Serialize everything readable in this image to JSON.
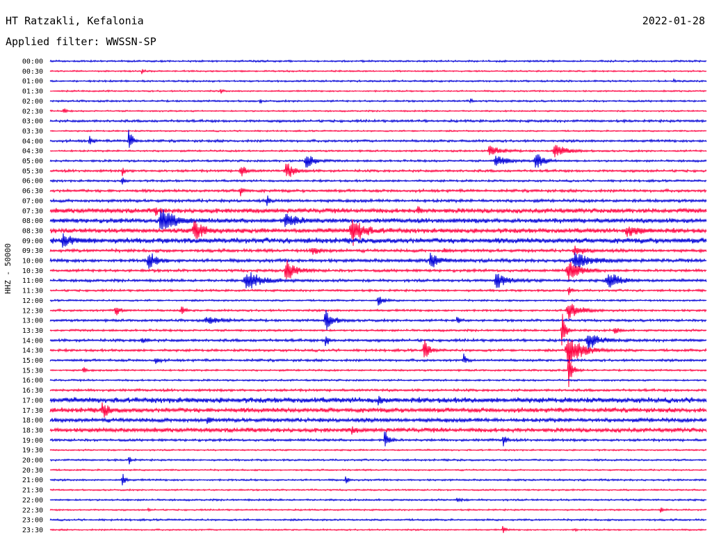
{
  "header": {
    "station": "HT Ratzakli, Kefalonia",
    "date": "2022-01-28",
    "filter_label": "Applied filter: WWSSN-SP",
    "axis_label": "HHZ - 50000"
  },
  "colors": {
    "trace_a": "#0000d8",
    "trace_b": "#ff0040"
  },
  "chart_data": {
    "type": "line",
    "title": "HT Ratzakli, Kefalonia",
    "subtitle": "Applied filter: WWSSN-SP",
    "ylabel": "HHZ - 50000",
    "xlabel": "",
    "series": [
      {
        "name": "blue",
        "color": "#0000d8"
      },
      {
        "name": "red",
        "color": "#ff0040"
      }
    ],
    "rows": [
      {
        "label": "00:00",
        "noise": 1.2,
        "events": []
      },
      {
        "label": "00:30",
        "noise": 1.0,
        "events": [
          [
            0.14,
            4,
            6
          ]
        ]
      },
      {
        "label": "01:00",
        "noise": 1.2,
        "events": [
          [
            0.95,
            3,
            4
          ]
        ]
      },
      {
        "label": "01:30",
        "noise": 1.0,
        "events": [
          [
            0.26,
            4,
            6
          ]
        ]
      },
      {
        "label": "02:00",
        "noise": 1.2,
        "events": [
          [
            0.32,
            3,
            4
          ],
          [
            0.64,
            3,
            6
          ]
        ]
      },
      {
        "label": "02:30",
        "noise": 1.0,
        "events": [
          [
            0.02,
            6,
            6
          ]
        ]
      },
      {
        "label": "03:00",
        "noise": 1.6,
        "events": []
      },
      {
        "label": "03:30",
        "noise": 1.0,
        "events": []
      },
      {
        "label": "04:00",
        "noise": 1.6,
        "events": [
          [
            0.06,
            8,
            8
          ],
          [
            0.12,
            20,
            10
          ]
        ]
      },
      {
        "label": "04:30",
        "noise": 1.2,
        "events": [
          [
            0.67,
            9,
            30
          ],
          [
            0.77,
            10,
            30
          ]
        ]
      },
      {
        "label": "05:00",
        "noise": 1.4,
        "events": [
          [
            0.39,
            14,
            20
          ],
          [
            0.68,
            10,
            26
          ],
          [
            0.74,
            14,
            20
          ]
        ]
      },
      {
        "label": "05:30",
        "noise": 1.6,
        "events": [
          [
            0.29,
            10,
            14
          ],
          [
            0.11,
            6,
            6
          ],
          [
            0.36,
            14,
            20
          ]
        ]
      },
      {
        "label": "06:00",
        "noise": 1.4,
        "events": [
          [
            0.11,
            5,
            8
          ]
        ]
      },
      {
        "label": "06:30",
        "noise": 1.8,
        "events": [
          [
            0.29,
            12,
            8
          ]
        ]
      },
      {
        "label": "07:00",
        "noise": 2.0,
        "events": [
          [
            0.33,
            9,
            6
          ]
        ]
      },
      {
        "label": "07:30",
        "noise": 3.0,
        "events": [
          [
            0.16,
            6,
            10
          ],
          [
            0.56,
            6,
            8
          ]
        ]
      },
      {
        "label": "08:00",
        "noise": 3.0,
        "events": [
          [
            0.17,
            22,
            30
          ],
          [
            0.36,
            12,
            30
          ]
        ]
      },
      {
        "label": "08:30",
        "noise": 3.0,
        "events": [
          [
            0.22,
            16,
            26
          ],
          [
            0.46,
            22,
            30
          ],
          [
            0.88,
            8,
            30
          ]
        ]
      },
      {
        "label": "09:00",
        "noise": 3.5,
        "events": [
          [
            0.02,
            8,
            30
          ]
        ]
      },
      {
        "label": "09:30",
        "noise": 2.0,
        "events": [
          [
            0.4,
            6,
            20
          ],
          [
            0.8,
            6,
            30
          ],
          [
            0.6,
            6,
            8
          ]
        ]
      },
      {
        "label": "10:00",
        "noise": 2.2,
        "events": [
          [
            0.15,
            14,
            20
          ],
          [
            0.58,
            14,
            20
          ],
          [
            0.8,
            12,
            40
          ]
        ]
      },
      {
        "label": "10:30",
        "noise": 1.8,
        "events": [
          [
            0.36,
            16,
            26
          ],
          [
            0.79,
            16,
            30
          ]
        ]
      },
      {
        "label": "11:00",
        "noise": 1.8,
        "events": [
          [
            0.3,
            14,
            40
          ],
          [
            0.68,
            12,
            30
          ],
          [
            0.85,
            14,
            30
          ]
        ]
      },
      {
        "label": "11:30",
        "noise": 1.4,
        "events": [
          [
            0.79,
            10,
            6
          ]
        ]
      },
      {
        "label": "12:00",
        "noise": 1.2,
        "events": [
          [
            0.5,
            8,
            14
          ]
        ]
      },
      {
        "label": "12:30",
        "noise": 1.4,
        "events": [
          [
            0.1,
            8,
            14
          ],
          [
            0.2,
            10,
            8
          ],
          [
            0.79,
            14,
            30
          ]
        ]
      },
      {
        "label": "13:00",
        "noise": 1.6,
        "events": [
          [
            0.24,
            5,
            40
          ],
          [
            0.42,
            16,
            20
          ],
          [
            0.62,
            6,
            8
          ]
        ]
      },
      {
        "label": "13:30",
        "noise": 1.4,
        "events": [
          [
            0.78,
            30,
            10
          ],
          [
            0.86,
            8,
            10
          ]
        ]
      },
      {
        "label": "14:00",
        "noise": 1.8,
        "events": [
          [
            0.14,
            6,
            10
          ],
          [
            0.42,
            16,
            6
          ],
          [
            0.82,
            14,
            30
          ]
        ]
      },
      {
        "label": "14:30",
        "noise": 1.6,
        "events": [
          [
            0.57,
            16,
            14
          ],
          [
            0.79,
            22,
            40
          ]
        ]
      },
      {
        "label": "15:00",
        "noise": 1.6,
        "events": [
          [
            0.16,
            6,
            10
          ],
          [
            0.63,
            9,
            8
          ]
        ]
      },
      {
        "label": "15:30",
        "noise": 1.2,
        "events": [
          [
            0.05,
            8,
            6
          ],
          [
            0.79,
            30,
            10
          ]
        ]
      },
      {
        "label": "16:00",
        "noise": 1.2,
        "events": []
      },
      {
        "label": "16:30",
        "noise": 1.6,
        "events": []
      },
      {
        "label": "17:00",
        "noise": 3.5,
        "events": [
          [
            0.5,
            12,
            6
          ]
        ]
      },
      {
        "label": "17:30",
        "noise": 3.0,
        "events": [
          [
            0.08,
            12,
            14
          ]
        ]
      },
      {
        "label": "18:00",
        "noise": 2.8,
        "events": [
          [
            0.24,
            6,
            6
          ]
        ]
      },
      {
        "label": "18:30",
        "noise": 2.8,
        "events": [
          [
            0.46,
            6,
            8
          ]
        ]
      },
      {
        "label": "19:00",
        "noise": 1.6,
        "events": [
          [
            0.51,
            20,
            10
          ],
          [
            0.69,
            10,
            8
          ]
        ]
      },
      {
        "label": "19:30",
        "noise": 1.0,
        "events": []
      },
      {
        "label": "20:00",
        "noise": 1.2,
        "events": [
          [
            0.12,
            10,
            6
          ]
        ]
      },
      {
        "label": "20:30",
        "noise": 1.0,
        "events": []
      },
      {
        "label": "21:00",
        "noise": 1.2,
        "events": [
          [
            0.11,
            10,
            8
          ],
          [
            0.45,
            6,
            8
          ]
        ]
      },
      {
        "label": "21:30",
        "noise": 1.0,
        "events": []
      },
      {
        "label": "22:00",
        "noise": 1.2,
        "events": [
          [
            0.62,
            4,
            10
          ]
        ]
      },
      {
        "label": "22:30",
        "noise": 1.0,
        "events": [
          [
            0.15,
            3,
            6
          ],
          [
            0.93,
            4,
            8
          ]
        ]
      },
      {
        "label": "23:00",
        "noise": 1.2,
        "events": []
      },
      {
        "label": "23:30",
        "noise": 1.0,
        "events": [
          [
            0.69,
            8,
            6
          ],
          [
            0.8,
            4,
            4
          ]
        ]
      }
    ]
  }
}
